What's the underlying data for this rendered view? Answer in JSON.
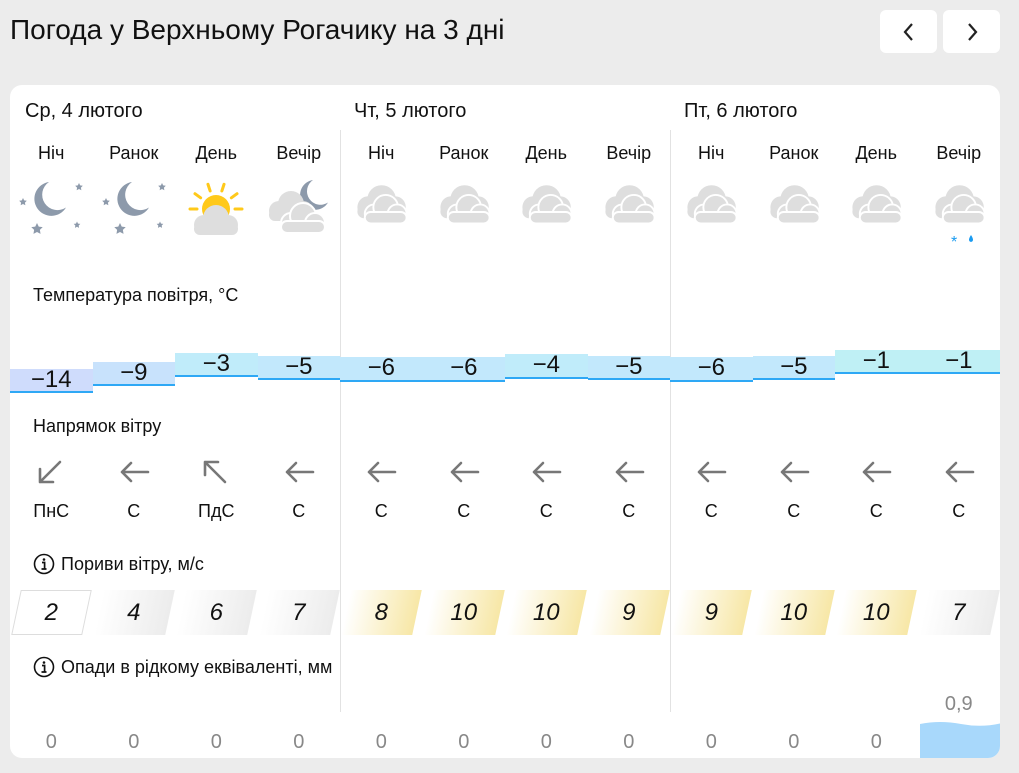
{
  "title": "Погода у Верхньому Рогачику на 3 дні",
  "nav": {
    "prev_icon": "chevron-left-icon",
    "next_icon": "chevron-right-icon"
  },
  "days": [
    {
      "label": "Ср, 4 лютого"
    },
    {
      "label": "Чт, 5 лютого"
    },
    {
      "label": "Пт, 6 лютого"
    }
  ],
  "periods": [
    {
      "label": "Ніч",
      "icon": "moon-stars",
      "temp": "−14",
      "t": -14,
      "wind_icon": "arrow-down-left",
      "wind": "ПнС",
      "gust": "2",
      "prec": "0"
    },
    {
      "label": "Ранок",
      "icon": "moon-stars",
      "temp": "−9",
      "t": -9,
      "wind_icon": "arrow-left",
      "wind": "С",
      "gust": "4",
      "prec": "0"
    },
    {
      "label": "День",
      "icon": "sun-cloud",
      "temp": "−3",
      "t": -3,
      "wind_icon": "arrow-up-left",
      "wind": "ПдС",
      "gust": "6",
      "prec": "0"
    },
    {
      "label": "Вечір",
      "icon": "cloud-moon",
      "temp": "−5",
      "t": -5,
      "wind_icon": "arrow-left",
      "wind": "С",
      "gust": "7",
      "prec": "0"
    },
    {
      "label": "Ніч",
      "icon": "overcast",
      "temp": "−6",
      "t": -6,
      "wind_icon": "arrow-left",
      "wind": "С",
      "gust": "8",
      "prec": "0"
    },
    {
      "label": "Ранок",
      "icon": "overcast",
      "temp": "−6",
      "t": -6,
      "wind_icon": "arrow-left",
      "wind": "С",
      "gust": "10",
      "prec": "0"
    },
    {
      "label": "День",
      "icon": "overcast",
      "temp": "−4",
      "t": -4,
      "wind_icon": "arrow-left",
      "wind": "С",
      "gust": "10",
      "prec": "0"
    },
    {
      "label": "Вечір",
      "icon": "overcast",
      "temp": "−5",
      "t": -5,
      "wind_icon": "arrow-left",
      "wind": "С",
      "gust": "9",
      "prec": "0"
    },
    {
      "label": "Ніч",
      "icon": "overcast",
      "temp": "−6",
      "t": -6,
      "wind_icon": "arrow-left",
      "wind": "С",
      "gust": "9",
      "prec": "0"
    },
    {
      "label": "Ранок",
      "icon": "overcast",
      "temp": "−5",
      "t": -5,
      "wind_icon": "arrow-left",
      "wind": "С",
      "gust": "10",
      "prec": "0"
    },
    {
      "label": "День",
      "icon": "overcast",
      "temp": "−1",
      "t": -1,
      "wind_icon": "arrow-left",
      "wind": "С",
      "gust": "10",
      "prec": "0"
    },
    {
      "label": "Вечір",
      "icon": "overcast-snow-rain",
      "temp": "−1",
      "t": -1,
      "wind_icon": "arrow-left",
      "wind": "С",
      "gust": "7",
      "prec": "0,9",
      "p": 0.9
    }
  ],
  "sections": {
    "temperature": "Температура повітря, °C",
    "wind": "Напрямок вітру",
    "gusts": "Пориви вітру, м/с",
    "precip": "Опади в рідкому еквіваленті, мм"
  },
  "colors": {
    "cold": "#cfdcfc",
    "cool": "#c5e4fc",
    "mild": "#c0ecfa",
    "gust_strong": "#f7e7a6",
    "precip": "#a8d8fb"
  }
}
